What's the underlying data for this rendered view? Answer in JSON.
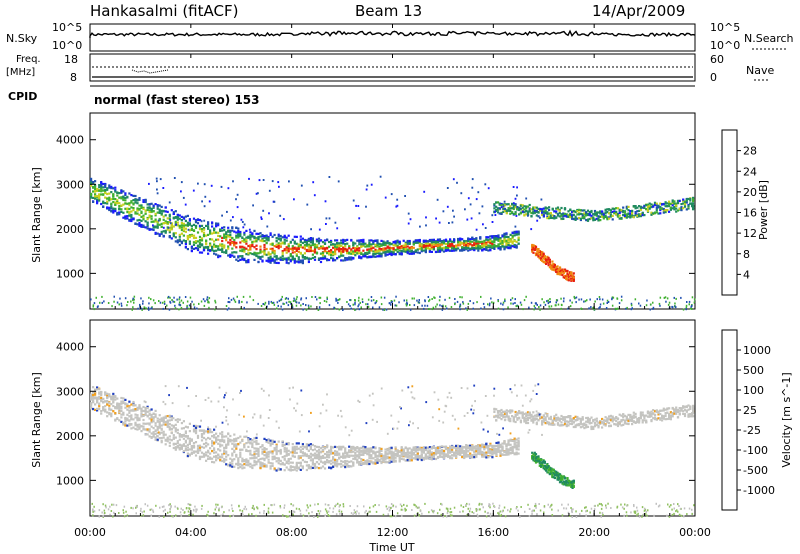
{
  "header": {
    "station": "Hankasalmi (fitACF)",
    "beam": "Beam 13",
    "date": "14/Apr/2009"
  },
  "top_panels": {
    "nsky_label": "N.Sky",
    "nsky_ticks": [
      "10^5",
      "10^0"
    ],
    "nsearch_label": "N.Search",
    "nsearch_ticks": [
      "10^5",
      "10^0"
    ],
    "freq_label": "Freq.",
    "freq_unit": "[MHz]",
    "freq_ticks": [
      "18",
      "8"
    ],
    "nave_label": "Nave",
    "nave_ticks": [
      "60",
      "0"
    ],
    "cpid_label": "CPID",
    "cpid_value": "normal (fast stereo) 153"
  },
  "chart_data": [
    {
      "type": "heatmap",
      "name": "power-panel",
      "ylabel": "Slant Range [km]",
      "xlabel": "Time UT",
      "yticks": [
        "4000",
        "3000",
        "2000",
        "1000"
      ],
      "ylim": [
        200,
        4600
      ],
      "xlim_hours": [
        0,
        24
      ],
      "colorbar": {
        "label": "Power [dB]",
        "ticks": [
          "28",
          "24",
          "20",
          "16",
          "12",
          "8",
          "4"
        ],
        "colors": [
          "#1a1aff",
          "#2050b0",
          "#208a60",
          "#40b030",
          "#c8d020",
          "#f08a10",
          "#e82010"
        ]
      },
      "main_band_km": [
        [
          0,
          2900
        ],
        [
          2,
          2400
        ],
        [
          4,
          1900
        ],
        [
          6,
          1650
        ],
        [
          8,
          1550
        ],
        [
          10,
          1550
        ],
        [
          12,
          1600
        ],
        [
          14,
          1650
        ],
        [
          16,
          1700
        ],
        [
          17,
          1800
        ]
      ],
      "secondary_band_km": [
        [
          17.5,
          1600
        ],
        [
          18.5,
          1100
        ],
        [
          19,
          950
        ]
      ],
      "upper_echo_km": [
        [
          16,
          2500
        ],
        [
          20,
          2300
        ],
        [
          24,
          2600
        ]
      ]
    },
    {
      "type": "heatmap",
      "name": "velocity-panel",
      "ylabel": "Slant Range [km]",
      "xlabel": "Time UT",
      "yticks": [
        "4000",
        "3000",
        "2000",
        "1000"
      ],
      "ylim": [
        200,
        4600
      ],
      "xlim_hours": [
        0,
        24
      ],
      "colorbar": {
        "label": "Velocity [m s^-1]",
        "ticks": [
          "1000",
          "500",
          "100",
          "25",
          "-25",
          "-100",
          "-500",
          "-1000"
        ],
        "colors": [
          "#2040c0",
          "#208a60",
          "#40b030",
          "#c0c0c0",
          "#c0c0c0",
          "#f0a020",
          "#e86010",
          "#e81010"
        ]
      }
    }
  ],
  "x_axis": {
    "ticks": [
      "00:00",
      "04:00",
      "08:00",
      "12:00",
      "16:00",
      "20:00",
      "00:00"
    ],
    "label": "Time UT"
  }
}
